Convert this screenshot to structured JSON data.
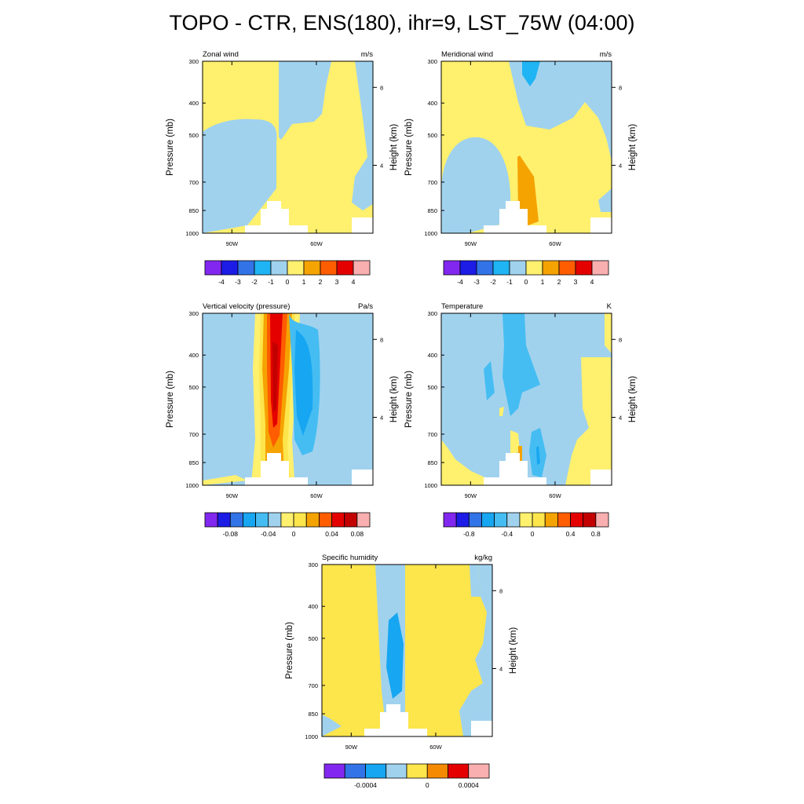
{
  "title": "TOPO - CTR, ENS(180), ihr=9, LST_75W (04:00)",
  "colors": {
    "white": "#ffffff",
    "blue_light": "#a0d2ee",
    "sky": "#1fb4f3",
    "yellow_pale": "#fff06e",
    "yellow": "#fde54c",
    "orange": "#f5a300",
    "red_orange": "#ff5d00",
    "red": "#e50000",
    "dark_red": "#c30000",
    "pink": "#f9afaf",
    "purple": "#8227ef",
    "navy": "#1c1ce6",
    "blue": "#3273e7",
    "azure": "#17a6f1",
    "light_sky": "#45bdf2"
  },
  "chart_data": [
    {
      "type": "heatmap",
      "panel": "zonal-wind",
      "title": "Zonal wind",
      "units": "m/s",
      "ylabel": "Pressure (mb)",
      "ylabel_right": "Height (km)",
      "y_ticks": [
        "300",
        "400",
        "500",
        "700",
        "850",
        "1000"
      ],
      "y_ticks_right": [
        "8",
        "4"
      ],
      "x_ticks": [
        "90W",
        "60W"
      ],
      "colorbar": {
        "labels": [
          "-4",
          "-3",
          "-2",
          "-1",
          "0",
          "1",
          "2",
          "3",
          "4"
        ],
        "colors": [
          "#8227ef",
          "#1c1ce6",
          "#3273e7",
          "#1fb4f3",
          "#a0d2ee",
          "#fff06e",
          "#f5a300",
          "#ff5d00",
          "#e50000",
          "#f9afaf"
        ]
      }
    },
    {
      "type": "heatmap",
      "panel": "meridional-wind",
      "title": "Meridional wind",
      "units": "m/s",
      "ylabel": "Pressure (mb)",
      "ylabel_right": "Height (km)",
      "y_ticks": [
        "300",
        "400",
        "500",
        "700",
        "850",
        "1000"
      ],
      "y_ticks_right": [
        "8",
        "4"
      ],
      "x_ticks": [
        "90W",
        "60W"
      ],
      "colorbar": {
        "labels": [
          "-4",
          "-3",
          "-2",
          "-1",
          "0",
          "1",
          "2",
          "3",
          "4"
        ],
        "colors": [
          "#8227ef",
          "#1c1ce6",
          "#3273e7",
          "#1fb4f3",
          "#a0d2ee",
          "#fff06e",
          "#f5a300",
          "#ff5d00",
          "#e50000",
          "#f9afaf"
        ]
      }
    },
    {
      "type": "heatmap",
      "panel": "vertical-velocity",
      "title": "Vertical velocity (pressure)",
      "units": "Pa/s",
      "ylabel": "Pressure (mb)",
      "ylabel_right": "Height (km)",
      "y_ticks": [
        "300",
        "400",
        "500",
        "700",
        "850",
        "1000"
      ],
      "y_ticks_right": [
        "8",
        "4"
      ],
      "x_ticks": [
        "90W",
        "60W"
      ],
      "colorbar": {
        "labels": [
          "-0.08",
          "-0.04",
          "0",
          "0.04",
          "0.08"
        ],
        "colors": [
          "#8227ef",
          "#1c1ce6",
          "#3273e7",
          "#17a6f1",
          "#45bdf2",
          "#a0d2ee",
          "#fff06e",
          "#fde54c",
          "#f5a300",
          "#ff5d00",
          "#e50000",
          "#c30000",
          "#f9afaf"
        ]
      }
    },
    {
      "type": "heatmap",
      "panel": "temperature",
      "title": "Temperature",
      "units": "K",
      "ylabel": "Pressure (mb)",
      "ylabel_right": "Height (km)",
      "y_ticks": [
        "300",
        "400",
        "500",
        "700",
        "850",
        "1000"
      ],
      "y_ticks_right": [
        "8",
        "4"
      ],
      "x_ticks": [
        "90W",
        "60W"
      ],
      "colorbar": {
        "labels": [
          "-0.8",
          "-0.4",
          "0",
          "0.4",
          "0.8"
        ],
        "colors": [
          "#8227ef",
          "#1c1ce6",
          "#3273e7",
          "#17a6f1",
          "#45bdf2",
          "#a0d2ee",
          "#fff06e",
          "#fde54c",
          "#f5a300",
          "#ff5d00",
          "#e50000",
          "#c30000",
          "#f9afaf"
        ]
      }
    },
    {
      "type": "heatmap",
      "panel": "specific-humidity",
      "title": "Specific humidity",
      "units": "kg/kg",
      "ylabel": "Pressure (mb)",
      "ylabel_right": "Height (km)",
      "y_ticks": [
        "300",
        "400",
        "500",
        "700",
        "850",
        "1000"
      ],
      "y_ticks_right": [
        "8",
        "4"
      ],
      "x_ticks": [
        "90W",
        "60W"
      ],
      "colorbar": {
        "labels": [
          "-0.0004",
          "0",
          "0.0004"
        ],
        "colors": [
          "#8227ef",
          "#3273e7",
          "#17a6f1",
          "#a0d2ee",
          "#fde54c",
          "#f58a00",
          "#e50000",
          "#f9afaf"
        ]
      }
    }
  ]
}
